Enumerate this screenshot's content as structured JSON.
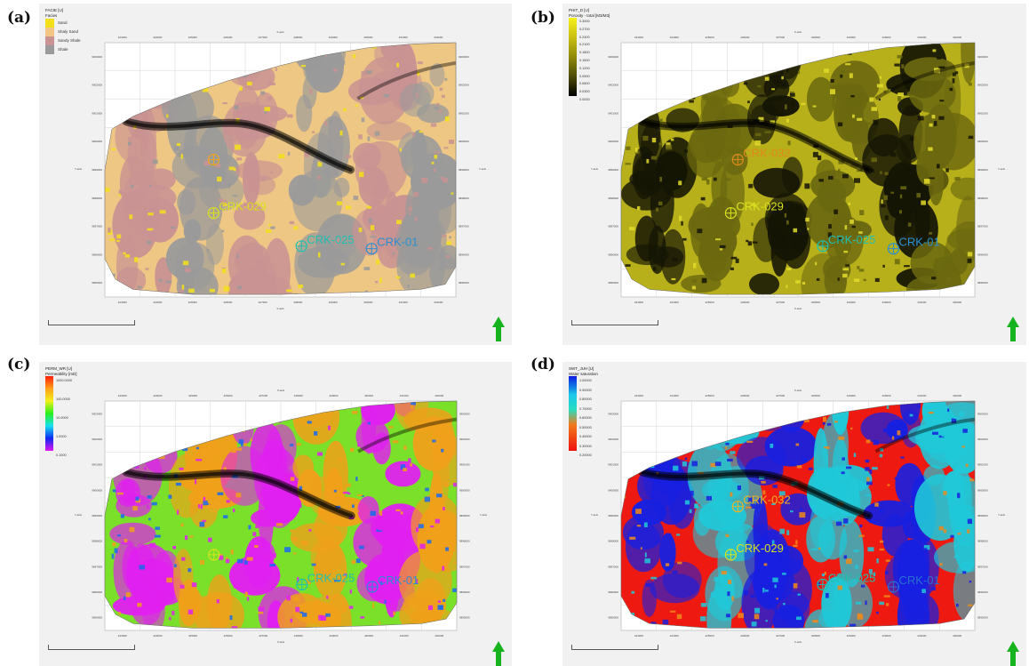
{
  "panels": [
    {
      "id": "a",
      "label": "(a)",
      "legend": {
        "type": "discrete",
        "title_line1": "FACIE [U]",
        "title_line2": "Facies",
        "items": [
          {
            "label": "Sand",
            "color": "#f4e01a"
          },
          {
            "label": "Shaly Sand",
            "color": "#f2c585"
          },
          {
            "label": "Sandy Shale",
            "color": "#c99393"
          },
          {
            "label": "Shale",
            "color": "#9a9a9a"
          }
        ]
      },
      "axes": {
        "x_title": "X-axis",
        "y_title": "Y-axis",
        "x_ticks": [
          "423000",
          "424000",
          "425000",
          "426000",
          "427000",
          "428000",
          "429000",
          "430000",
          "431000",
          "432000"
        ],
        "y_ticks": [
          "9903000",
          "9902000",
          "9901000",
          "9900000",
          "9899000",
          "9898000",
          "9897000",
          "9896000",
          "9895000"
        ]
      },
      "wells": [
        {
          "name": "CRK-032",
          "color": "#f0a61e",
          "show_label": false
        },
        {
          "name": "CRK-029",
          "color": "#d8e21c",
          "label": "CRK-029"
        },
        {
          "name": "CRK-025",
          "color": "#1fbfb0",
          "label": "CRK-025"
        },
        {
          "name": "CRK-01",
          "color": "#2a8fd0",
          "label": "CRK-01"
        }
      ],
      "colors": {
        "base": "#efc785",
        "patch": "#c99393",
        "alt": "#9a9a9a",
        "spot": "#f4e01a"
      }
    },
    {
      "id": "b",
      "label": "(b)",
      "legend": {
        "type": "ramp",
        "title_line1": "PHIT_D [U]",
        "title_line2": "Porosity - total [M3/M3]",
        "values": [
          "0.3000",
          "0.2700",
          "0.2400",
          "0.2100",
          "0.1800",
          "0.1500",
          "0.1200",
          "0.0900",
          "0.0600",
          "0.0300",
          "0.0000"
        ],
        "gradient": [
          "#f5f01a",
          "#c9c011",
          "#8f8a0c",
          "#4e4c08",
          "#000000"
        ]
      },
      "axes": {
        "x_title": "X-axis",
        "y_title": "Y-axis",
        "x_ticks": [
          "423000",
          "424000",
          "425000",
          "426000",
          "427000",
          "428000",
          "429000",
          "430000",
          "431000",
          "432000"
        ],
        "y_ticks": [
          "9903000",
          "9902000",
          "9901000",
          "9900000",
          "9899000",
          "9898000",
          "9897000",
          "9896000",
          "9895000"
        ]
      },
      "wells": [
        {
          "name": "CRK-032",
          "color": "#e08a1c",
          "label": "CRK-032"
        },
        {
          "name": "CRK-029",
          "color": "#d8e21c",
          "label": "CRK-029"
        },
        {
          "name": "CRK-025",
          "color": "#1fbfb0",
          "label": "CRK-025"
        },
        {
          "name": "CRK-01",
          "color": "#2a8fd0",
          "label": "CRK-01"
        }
      ],
      "colors": {
        "base": "#b7b01a",
        "patch": "#151505",
        "alt": "#6b6810",
        "spot": "#e3dc2c"
      }
    },
    {
      "id": "c",
      "label": "(c)",
      "legend": {
        "type": "ramp",
        "title_line1": "PERM_WR [U]",
        "title_line2": "Permeability [mD]",
        "values": [
          "1000.0000",
          "",
          "100.0000",
          "",
          "10.0000",
          "",
          "1.0000",
          "",
          "0.1000"
        ],
        "gradient": [
          "#ff1e0a",
          "#ffa01a",
          "#f0f01a",
          "#28f01e",
          "#18e0f0",
          "#1028f0",
          "#e014f0"
        ]
      },
      "axes": {
        "x_title": "X-axis",
        "y_title": "Y-axis",
        "x_ticks": [
          "423000",
          "424000",
          "425000",
          "426000",
          "427000",
          "428000",
          "429000",
          "430000",
          "431000",
          "432000"
        ],
        "y_ticks": [
          "9903000",
          "9902000",
          "9901000",
          "9900000",
          "9899000",
          "9898000",
          "9897000",
          "9896000",
          "9895000"
        ]
      },
      "wells": [
        {
          "name": "CRK-032",
          "color": "#f0a61e",
          "show_label": false
        },
        {
          "name": "CRK-029",
          "color": "#d8e21c",
          "show_label": false
        },
        {
          "name": "CRK-025",
          "color": "#1fbfb0",
          "label": "CRK-025"
        },
        {
          "name": "CRK-01",
          "color": "#2a8fd0",
          "label": "CRK-01"
        }
      ],
      "colors": {
        "base": "#7ae02a",
        "patch": "#e020f0",
        "alt": "#f0a01a",
        "spot": "#1a6af0"
      }
    },
    {
      "id": "d",
      "label": "(d)",
      "legend": {
        "type": "ramp",
        "title_line1": "SWT_JUH [U]",
        "title_line2": "Water saturation",
        "values": [
          "1.00000",
          "0.90000",
          "0.80000",
          "0.70000",
          "0.60000",
          "0.50000",
          "0.40000",
          "0.30000",
          "0.20000"
        ],
        "gradient": [
          "#0d1ae0",
          "#18c8e8",
          "#2adcc0",
          "#f07a1a",
          "#f01010"
        ]
      },
      "axes": {
        "x_title": "X-axis",
        "y_title": "Y-axis",
        "x_ticks": [
          "423000",
          "424000",
          "425000",
          "426000",
          "427000",
          "428000",
          "429000",
          "430000",
          "431000",
          "432000"
        ],
        "y_ticks": [
          "9903000",
          "9902000",
          "9901000",
          "9900000",
          "9899000",
          "9898000",
          "9897000",
          "9896000",
          "9895000"
        ]
      },
      "wells": [
        {
          "name": "CRK-032",
          "color": "#f0b01e",
          "label": "CRK-032"
        },
        {
          "name": "CRK-029",
          "color": "#d8e21c",
          "label": "CRK-029"
        },
        {
          "name": "CRK-025",
          "color": "#1fbfb0",
          "label": "CRK-025"
        },
        {
          "name": "CRK-01",
          "color": "#2a6fd0",
          "label": "CRK-01"
        }
      ],
      "colors": {
        "base": "#ee1a12",
        "patch": "#1820e0",
        "alt": "#20c8d8",
        "spot": "#f08a1a"
      }
    }
  ]
}
